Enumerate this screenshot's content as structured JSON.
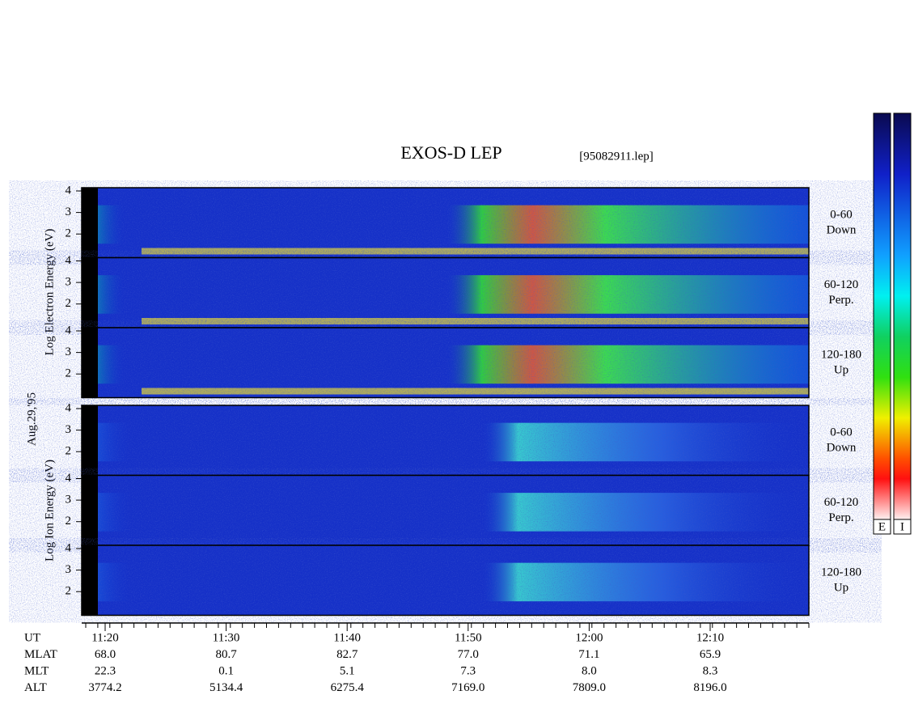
{
  "title": "EXOS-D LEP",
  "file": "[95082911.lep]",
  "date": "Aug.29,'95",
  "ylim": [
    0.9,
    4.15
  ],
  "electron": {
    "axis_label": "Log Electron Energy (eV)",
    "panels": [
      {
        "angle": "0-60",
        "direction": "Down",
        "yticks": [
          2,
          3,
          4
        ]
      },
      {
        "angle": "60-120",
        "direction": "Perp.",
        "yticks": [
          2,
          3,
          4
        ]
      },
      {
        "angle": "120-180",
        "direction": "Up",
        "yticks": [
          2,
          3,
          4
        ]
      }
    ]
  },
  "ion": {
    "axis_label": "Log Ion Energy (eV)",
    "panels": [
      {
        "angle": "0-60",
        "direction": "Down",
        "yticks": [
          2,
          3,
          4
        ]
      },
      {
        "angle": "60-120",
        "direction": "Perp.",
        "yticks": [
          2,
          3,
          4
        ]
      },
      {
        "angle": "120-180",
        "direction": "Up",
        "yticks": [
          2,
          3,
          4
        ]
      }
    ]
  },
  "orbit": {
    "row_labels": [
      "UT",
      "MLAT",
      "MLT",
      "ALT"
    ],
    "columns": [
      [
        "11:20",
        "68.0",
        "22.3",
        "3774.2"
      ],
      [
        "11:30",
        "80.7",
        "0.1",
        "5134.4"
      ],
      [
        "11:40",
        "82.7",
        "5.1",
        "6275.4"
      ],
      [
        "11:50",
        "77.0",
        "7.3",
        "7169.0"
      ],
      [
        "12:00",
        "71.1",
        "8.0",
        "7809.0"
      ],
      [
        "12:10",
        "65.9",
        "8.3",
        "8196.0"
      ]
    ]
  },
  "colorbars": [
    "E",
    "I"
  ]
}
